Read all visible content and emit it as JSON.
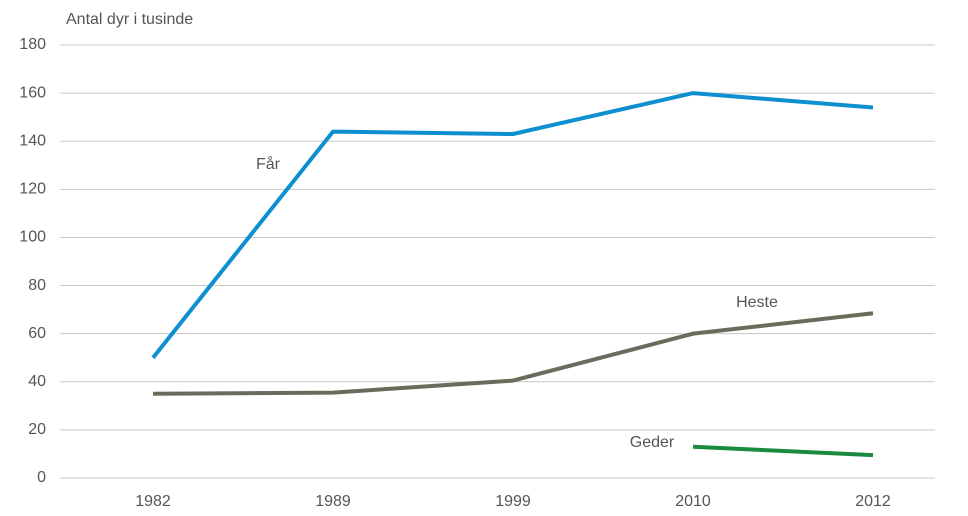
{
  "chart_data": {
    "type": "line",
    "y_label": "Antal dyr i tusinde",
    "categories": [
      "1982",
      "1989",
      "1999",
      "2010",
      "2012"
    ],
    "series": [
      {
        "name": "Får",
        "color": "#0e8fd0",
        "values": [
          50,
          144,
          143,
          160,
          154
        ]
      },
      {
        "name": "Heste",
        "color": "#6b6b5c",
        "values": [
          35,
          35.5,
          40.5,
          60,
          68.5
        ]
      },
      {
        "name": "Geder",
        "color": "#1a8a3f",
        "values": [
          null,
          null,
          null,
          13,
          9.5
        ]
      }
    ],
    "ylim": [
      0,
      180
    ],
    "yticks": [
      0,
      20,
      40,
      60,
      80,
      100,
      120,
      140,
      160,
      180
    ],
    "grid": true
  }
}
